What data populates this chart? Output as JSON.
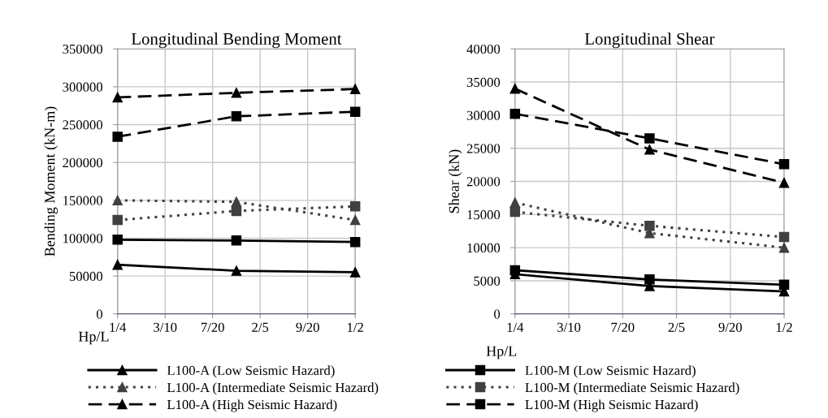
{
  "chart_data": [
    {
      "type": "line",
      "title": "Longitudinal Bending Moment",
      "ylabel": "Bending Moment (kN-m)",
      "xlabel": "Hp/L",
      "x": [
        0.25,
        0.375,
        0.5
      ],
      "xlim": [
        0.25,
        0.5
      ],
      "xticks": [
        {
          "value": 0.25,
          "label": "1/4"
        },
        {
          "value": 0.3,
          "label": "3/10"
        },
        {
          "value": 0.35,
          "label": "7/20"
        },
        {
          "value": 0.4,
          "label": "2/5"
        },
        {
          "value": 0.45,
          "label": "9/20"
        },
        {
          "value": 0.5,
          "label": "1/2"
        }
      ],
      "ylim": [
        0,
        350000
      ],
      "yticks": [
        0,
        50000,
        100000,
        150000,
        200000,
        250000,
        300000,
        350000
      ],
      "grid": true,
      "legend": "bottom",
      "series": [
        {
          "name": "L100-A (Low Seismic Hazard)",
          "color": "#000000",
          "marker": "triangle",
          "line_style": "solid",
          "values": [
            65000,
            57000,
            55000
          ]
        },
        {
          "name": "L100-A (Intermediate Seismic Hazard)",
          "color": "#404040",
          "marker": "triangle",
          "line_style": "dotted",
          "values": [
            150000,
            148000,
            124000
          ]
        },
        {
          "name": "L100-A (High Seismic Hazard)",
          "color": "#000000",
          "marker": "triangle",
          "line_style": "dashed",
          "values": [
            286000,
            292000,
            297000
          ]
        },
        {
          "name": "L100-M (Low Seismic Hazard)",
          "color": "#000000",
          "marker": "square",
          "line_style": "solid",
          "values": [
            98000,
            97000,
            95000
          ]
        },
        {
          "name": "L100-M (Intermediate Seismic Hazard)",
          "color": "#404040",
          "marker": "square",
          "line_style": "dotted",
          "values": [
            124000,
            136000,
            142000
          ]
        },
        {
          "name": "L100-M (High Seismic Hazard)",
          "color": "#000000",
          "marker": "square",
          "line_style": "dashed",
          "values": [
            234000,
            261000,
            267000
          ]
        }
      ]
    },
    {
      "type": "line",
      "title": "Longitudinal Shear",
      "ylabel": "Shear (kN)",
      "xlabel": "Hp/L",
      "x": [
        0.25,
        0.375,
        0.5
      ],
      "xlim": [
        0.25,
        0.5
      ],
      "xticks": [
        {
          "value": 0.25,
          "label": "1/4"
        },
        {
          "value": 0.3,
          "label": "3/10"
        },
        {
          "value": 0.35,
          "label": "7/20"
        },
        {
          "value": 0.4,
          "label": "2/5"
        },
        {
          "value": 0.45,
          "label": "9/20"
        },
        {
          "value": 0.5,
          "label": "1/2"
        }
      ],
      "ylim": [
        0,
        40000
      ],
      "yticks": [
        0,
        5000,
        10000,
        15000,
        20000,
        25000,
        30000,
        35000,
        40000
      ],
      "grid": true,
      "series": [
        {
          "color": "#000000",
          "marker": "triangle",
          "line_style": "solid",
          "values": [
            6000,
            4200,
            3400
          ]
        },
        {
          "color": "#404040",
          "marker": "triangle",
          "line_style": "dotted",
          "values": [
            16800,
            12200,
            10000
          ]
        },
        {
          "color": "#000000",
          "marker": "triangle",
          "line_style": "dashed",
          "values": [
            34000,
            24800,
            19800
          ]
        },
        {
          "color": "#000000",
          "marker": "square",
          "line_style": "solid",
          "values": [
            6600,
            5200,
            4400
          ]
        },
        {
          "color": "#404040",
          "marker": "square",
          "line_style": "dotted",
          "values": [
            15400,
            13300,
            11600
          ]
        },
        {
          "color": "#000000",
          "marker": "square",
          "line_style": "dashed",
          "values": [
            30200,
            26500,
            22600
          ]
        }
      ]
    }
  ]
}
